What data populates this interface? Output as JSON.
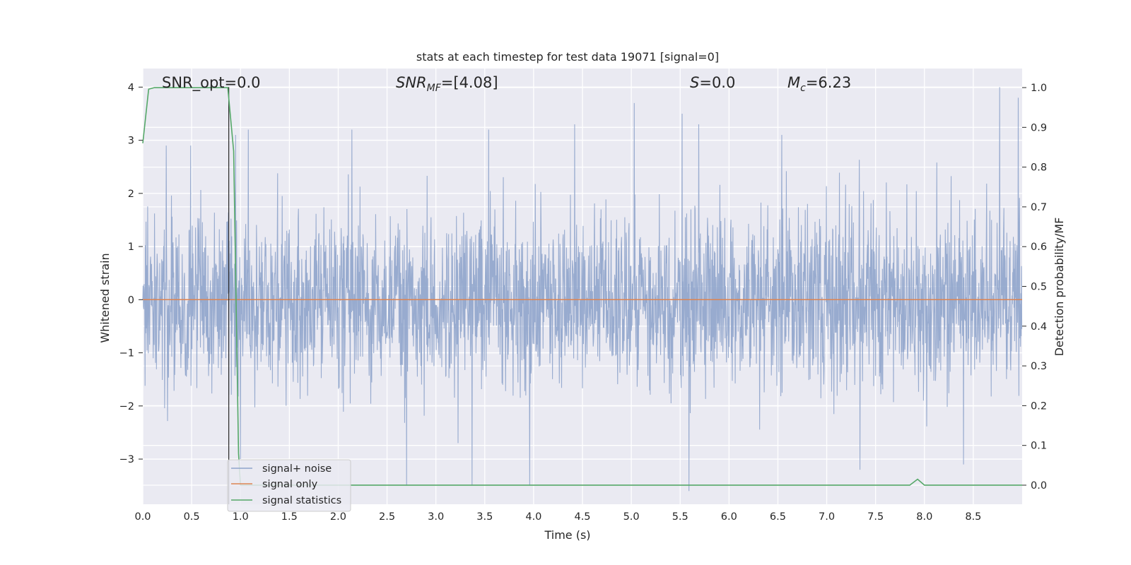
{
  "colors": {
    "background": "#eaeaf2",
    "grid": "#ffffff",
    "noise": "#8fa4cb",
    "signal_only": "#dd8452",
    "statistics": "#55a868",
    "marker_line": "#262626"
  },
  "chart_data": {
    "type": "line",
    "title": "stats at each timestep for test data 19071 [signal=0]",
    "xlabel": "Time (s)",
    "ylabel": "Whitened strain",
    "y2label": "Detection probability/MF",
    "xlim": [
      0.0,
      9.0
    ],
    "ylim": [
      -3.85,
      4.35
    ],
    "y2lim": [
      -0.048,
      1.048
    ],
    "xticks": [
      "0.0",
      "0.5",
      "1.0",
      "1.5",
      "2.0",
      "2.5",
      "3.0",
      "3.5",
      "4.0",
      "4.5",
      "5.0",
      "5.5",
      "6.0",
      "6.5",
      "7.0",
      "7.5",
      "8.0",
      "8.5"
    ],
    "yticks": [
      "4",
      "3",
      "2",
      "1",
      "0",
      "−1",
      "−2",
      "−3"
    ],
    "y2ticks": [
      "1.0",
      "0.9",
      "0.8",
      "0.7",
      "0.6",
      "0.5",
      "0.4",
      "0.3",
      "0.2",
      "0.1",
      "0.0"
    ],
    "grid": true,
    "legend_position": "lower-left",
    "annotations": {
      "snr_opt": "SNR_opt=0.0",
      "snr_mf_main": "SNR",
      "snr_mf_sub": "MF",
      "snr_mf_value": "=[4.08]",
      "s_symbol": "S",
      "s_value": "=0.0",
      "mc_main": "M",
      "mc_sub": "c",
      "mc_value": "=6.23"
    },
    "series": [
      {
        "name": "signal+ noise",
        "description_axis": "left",
        "sampling_rate": 300,
        "peak_samples": [
          {
            "x": 0.24,
            "y": 2.9
          },
          {
            "x": 0.49,
            "y": 2.9
          },
          {
            "x": 0.95,
            "y": 3.1
          },
          {
            "x": 1.08,
            "y": 3.2
          },
          {
            "x": 2.14,
            "y": 3.2
          },
          {
            "x": 3.54,
            "y": 3.2
          },
          {
            "x": 4.42,
            "y": 3.3
          },
          {
            "x": 5.03,
            "y": 3.7
          },
          {
            "x": 5.52,
            "y": 3.5
          },
          {
            "x": 5.69,
            "y": 3.3
          },
          {
            "x": 6.54,
            "y": 3.1
          },
          {
            "x": 8.77,
            "y": 4.0
          },
          {
            "x": 8.96,
            "y": 3.8
          },
          {
            "x": 2.7,
            "y": -3.5
          },
          {
            "x": 3.37,
            "y": -3.5
          },
          {
            "x": 3.96,
            "y": -3.5
          },
          {
            "x": 5.59,
            "y": -3.6
          },
          {
            "x": 8.4,
            "y": -3.1
          },
          {
            "x": 7.34,
            "y": -3.2
          },
          {
            "x": 1.0,
            "y": -3.0
          }
        ]
      },
      {
        "name": "signal only",
        "axis": "left",
        "x": [
          0.0,
          9.0
        ],
        "y": [
          0.0,
          0.0
        ]
      },
      {
        "name": "signal statistics",
        "axis": "right",
        "x": [
          0.0,
          0.06,
          0.12,
          0.3,
          0.6,
          0.87,
          0.93,
          0.98,
          1.0,
          7.85,
          7.93,
          8.0,
          9.0
        ],
        "y": [
          0.86,
          0.996,
          1.0,
          1.0,
          1.0,
          1.0,
          0.84,
          0.08,
          0.0,
          0.0,
          0.015,
          0.0,
          0.0
        ]
      }
    ],
    "marker_line": {
      "x": 0.88,
      "y_from": -3.85,
      "y_to": 4.0
    }
  }
}
